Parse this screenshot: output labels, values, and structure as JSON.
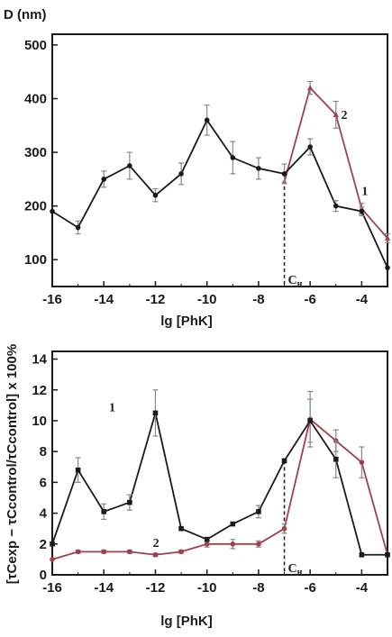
{
  "chart_data": [
    {
      "type": "line",
      "ylabel": "D (nm)",
      "xlabel": "lg [PhK]",
      "xlim": [
        -16,
        -3
      ],
      "ylim": [
        50,
        520
      ],
      "xticks": [
        -16,
        -14,
        -12,
        -10,
        -8,
        -6,
        -4
      ],
      "yticks": [
        100,
        200,
        300,
        400,
        500
      ],
      "grid": false,
      "annotation": {
        "text": "C",
        "subscript": "н",
        "x": -7
      },
      "series": [
        {
          "name": "1",
          "color": "#1a1a1a",
          "marker": "circle",
          "x": [
            -16,
            -15,
            -14,
            -13,
            -12,
            -11,
            -10,
            -9,
            -8,
            -7,
            -6,
            -5,
            -4,
            -3
          ],
          "y": [
            190,
            160,
            250,
            275,
            220,
            260,
            360,
            290,
            270,
            260,
            310,
            200,
            190,
            85
          ],
          "err": [
            0,
            12,
            15,
            25,
            12,
            20,
            28,
            30,
            20,
            18,
            15,
            10,
            8,
            0
          ]
        },
        {
          "name": "2",
          "color": "#a0404c",
          "marker": "triangle",
          "x": [
            -7,
            -6,
            -5,
            -4,
            -3
          ],
          "y": [
            245,
            420,
            370,
            195,
            140
          ],
          "err": [
            0,
            12,
            25,
            10,
            8
          ]
        }
      ]
    },
    {
      "type": "line",
      "ylabel": "[τCexp − τCcontrol/τCcontrol] x 100%",
      "xlabel": "lg [PhK]",
      "xlim": [
        -16,
        -3
      ],
      "ylim": [
        0,
        14.5
      ],
      "xticks": [
        -16,
        -14,
        -12,
        -10,
        -8,
        -6,
        -4
      ],
      "yticks": [
        0,
        2,
        4,
        6,
        8,
        10,
        12,
        14
      ],
      "grid": false,
      "annotation": {
        "text": "C",
        "subscript": "н",
        "x": -7
      },
      "series": [
        {
          "name": "1",
          "color": "#1a1a1a",
          "marker": "square",
          "x": [
            -16,
            -15,
            -14,
            -13,
            -12,
            -11,
            -10,
            -9,
            -8,
            -7,
            -6,
            -5,
            -4,
            -3
          ],
          "y": [
            2.0,
            6.8,
            4.1,
            4.7,
            10.5,
            3.0,
            2.3,
            3.3,
            4.1,
            7.4,
            10.0,
            7.5,
            1.3,
            1.3
          ],
          "err": [
            0,
            0.8,
            0.5,
            0.5,
            1.5,
            0,
            0,
            0,
            0.4,
            0,
            1.4,
            1.2,
            0,
            0
          ]
        },
        {
          "name": "2",
          "color": "#a0404c",
          "marker": "circle",
          "x": [
            -16,
            -15,
            -14,
            -13,
            -12,
            -11,
            -10,
            -9,
            -8,
            -7,
            -6,
            -5,
            -4,
            -3
          ],
          "y": [
            1.0,
            1.5,
            1.5,
            1.5,
            1.3,
            1.5,
            2.0,
            2.0,
            2.0,
            3.0,
            10.1,
            8.7,
            7.3,
            1.3
          ],
          "err": [
            0,
            0.1,
            0.1,
            0.1,
            0.1,
            0.1,
            0.2,
            0.3,
            0.2,
            0.3,
            1.8,
            0.7,
            1.0,
            0
          ]
        }
      ]
    }
  ]
}
